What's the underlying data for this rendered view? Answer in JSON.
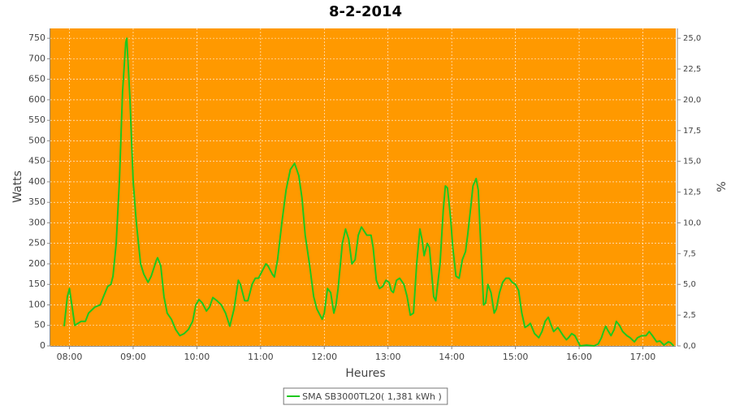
{
  "chart_data": {
    "type": "line",
    "title": "8-2-2014",
    "xlabel": "Heures",
    "ylabel": "Watts",
    "y2label": "%",
    "x": [
      "07:55",
      "07:58",
      "08:00",
      "08:05",
      "08:11",
      "08:15",
      "08:18",
      "08:24",
      "08:29",
      "08:32",
      "08:36",
      "08:39",
      "08:41",
      "08:44",
      "08:47",
      "08:50",
      "08:53",
      "08:54",
      "08:55",
      "08:57",
      "09:00",
      "09:03",
      "09:07",
      "09:10",
      "09:14",
      "09:17",
      "09:22",
      "09:23",
      "09:26",
      "09:29",
      "09:32",
      "09:36",
      "09:40",
      "09:44",
      "09:48",
      "09:52",
      "09:56",
      "09:59",
      "10:02",
      "10:05",
      "10:09",
      "10:12",
      "10:15",
      "10:19",
      "10:23",
      "10:27",
      "10:31",
      "10:35",
      "10:39",
      "10:41",
      "10:45",
      "10:48",
      "10:52",
      "10:55",
      "10:58",
      "11:01",
      "11:05",
      "11:07",
      "11:11",
      "11:13",
      "11:16",
      "11:20",
      "11:24",
      "11:28",
      "11:32",
      "11:36",
      "11:39",
      "11:42",
      "11:46",
      "11:50",
      "11:53",
      "11:58",
      "12:00",
      "12:03",
      "12:06",
      "12:09",
      "12:11",
      "12:13",
      "12:17",
      "12:20",
      "12:23",
      "12:26",
      "12:29",
      "12:32",
      "12:35",
      "12:40",
      "12:44",
      "12:46",
      "12:49",
      "12:52",
      "12:55",
      "12:58",
      "13:01",
      "13:03",
      "13:05",
      "13:08",
      "13:11",
      "13:15",
      "13:18",
      "13:21",
      "13:24",
      "13:27",
      "13:30",
      "13:32",
      "13:34",
      "13:37",
      "13:39",
      "13:43",
      "13:45",
      "13:49",
      "13:52",
      "13:54",
      "13:56",
      "13:59",
      "14:01",
      "14:04",
      "14:07",
      "14:10",
      "14:13",
      "14:15",
      "14:18",
      "14:20",
      "14:23",
      "14:25",
      "14:28",
      "14:30",
      "14:32",
      "14:34",
      "14:37",
      "14:40",
      "14:42",
      "14:45",
      "14:48",
      "14:51",
      "14:54",
      "14:57",
      "15:00",
      "15:03",
      "15:06",
      "15:09",
      "15:12",
      "15:14",
      "15:18",
      "15:22",
      "15:25",
      "15:28",
      "15:31",
      "15:33",
      "15:36",
      "15:40",
      "15:45",
      "15:48",
      "15:50",
      "15:53",
      "15:56",
      "15:59",
      "16:01",
      "16:07",
      "16:14",
      "16:18",
      "16:21",
      "16:23",
      "16:25",
      "16:27",
      "16:30",
      "16:33",
      "16:35",
      "16:38",
      "16:41",
      "16:45",
      "16:48",
      "16:52",
      "16:55",
      "16:59",
      "17:03",
      "17:06",
      "17:09",
      "17:13",
      "17:16",
      "17:20",
      "17:24",
      "17:26",
      "17:29"
    ],
    "series": [
      {
        "name": "SMA SB3000TL20( 1,381 kWh )",
        "color": "#1ec81e",
        "values": [
          48,
          120,
          140,
          50,
          60,
          60,
          80,
          95,
          100,
          120,
          145,
          150,
          170,
          250,
          400,
          620,
          740,
          750,
          700,
          600,
          400,
          300,
          200,
          175,
          155,
          170,
          210,
          215,
          195,
          120,
          80,
          65,
          40,
          25,
          30,
          40,
          60,
          100,
          113,
          105,
          85,
          95,
          118,
          110,
          100,
          80,
          48,
          90,
          160,
          150,
          110,
          110,
          150,
          165,
          165,
          180,
          200,
          195,
          175,
          168,
          210,
          300,
          380,
          430,
          445,
          415,
          360,
          270,
          200,
          120,
          90,
          65,
          80,
          140,
          130,
          80,
          100,
          140,
          250,
          285,
          260,
          200,
          210,
          270,
          290,
          270,
          270,
          240,
          160,
          140,
          145,
          160,
          155,
          135,
          130,
          160,
          165,
          150,
          120,
          75,
          80,
          200,
          285,
          260,
          220,
          250,
          240,
          120,
          110,
          200,
          330,
          390,
          385,
          310,
          240,
          170,
          165,
          210,
          230,
          270,
          340,
          390,
          408,
          380,
          210,
          100,
          105,
          150,
          130,
          80,
          90,
          130,
          155,
          165,
          165,
          155,
          150,
          135,
          80,
          45,
          50,
          55,
          30,
          20,
          35,
          60,
          70,
          55,
          35,
          45,
          25,
          15,
          20,
          30,
          25,
          10,
          0,
          2,
          0,
          5,
          20,
          35,
          48,
          38,
          25,
          40,
          60,
          50,
          35,
          25,
          20,
          10,
          20,
          25,
          25,
          35,
          25,
          10,
          12,
          2,
          10,
          8,
          0
        ]
      }
    ],
    "xlim": [
      "07:42",
      "17:31"
    ],
    "xticks": [
      "08:00",
      "09:00",
      "10:00",
      "11:00",
      "12:00",
      "13:00",
      "14:00",
      "15:00",
      "16:00",
      "17:00"
    ],
    "ylim": [
      0,
      774
    ],
    "yticks": [
      0,
      50,
      100,
      150,
      200,
      250,
      300,
      350,
      400,
      450,
      500,
      550,
      600,
      650,
      700,
      750
    ],
    "y2lim": [
      0,
      25.8
    ],
    "y2ticks": [
      {
        "value": 0,
        "label": "0,0"
      },
      {
        "value": 2.5,
        "label": "2,5"
      },
      {
        "value": 5,
        "label": "5,0"
      },
      {
        "value": 7.5,
        "label": "7,5"
      },
      {
        "value": 10,
        "label": "10,0"
      },
      {
        "value": 12.5,
        "label": "12,5"
      },
      {
        "value": 15,
        "label": "15,0"
      },
      {
        "value": 17.5,
        "label": "17,5"
      },
      {
        "value": 20,
        "label": "20,0"
      },
      {
        "value": 22.5,
        "label": "22,5"
      },
      {
        "value": 25,
        "label": "25,0"
      }
    ],
    "grid": true,
    "plot_color": "#ff9900",
    "legend": "bottom"
  }
}
